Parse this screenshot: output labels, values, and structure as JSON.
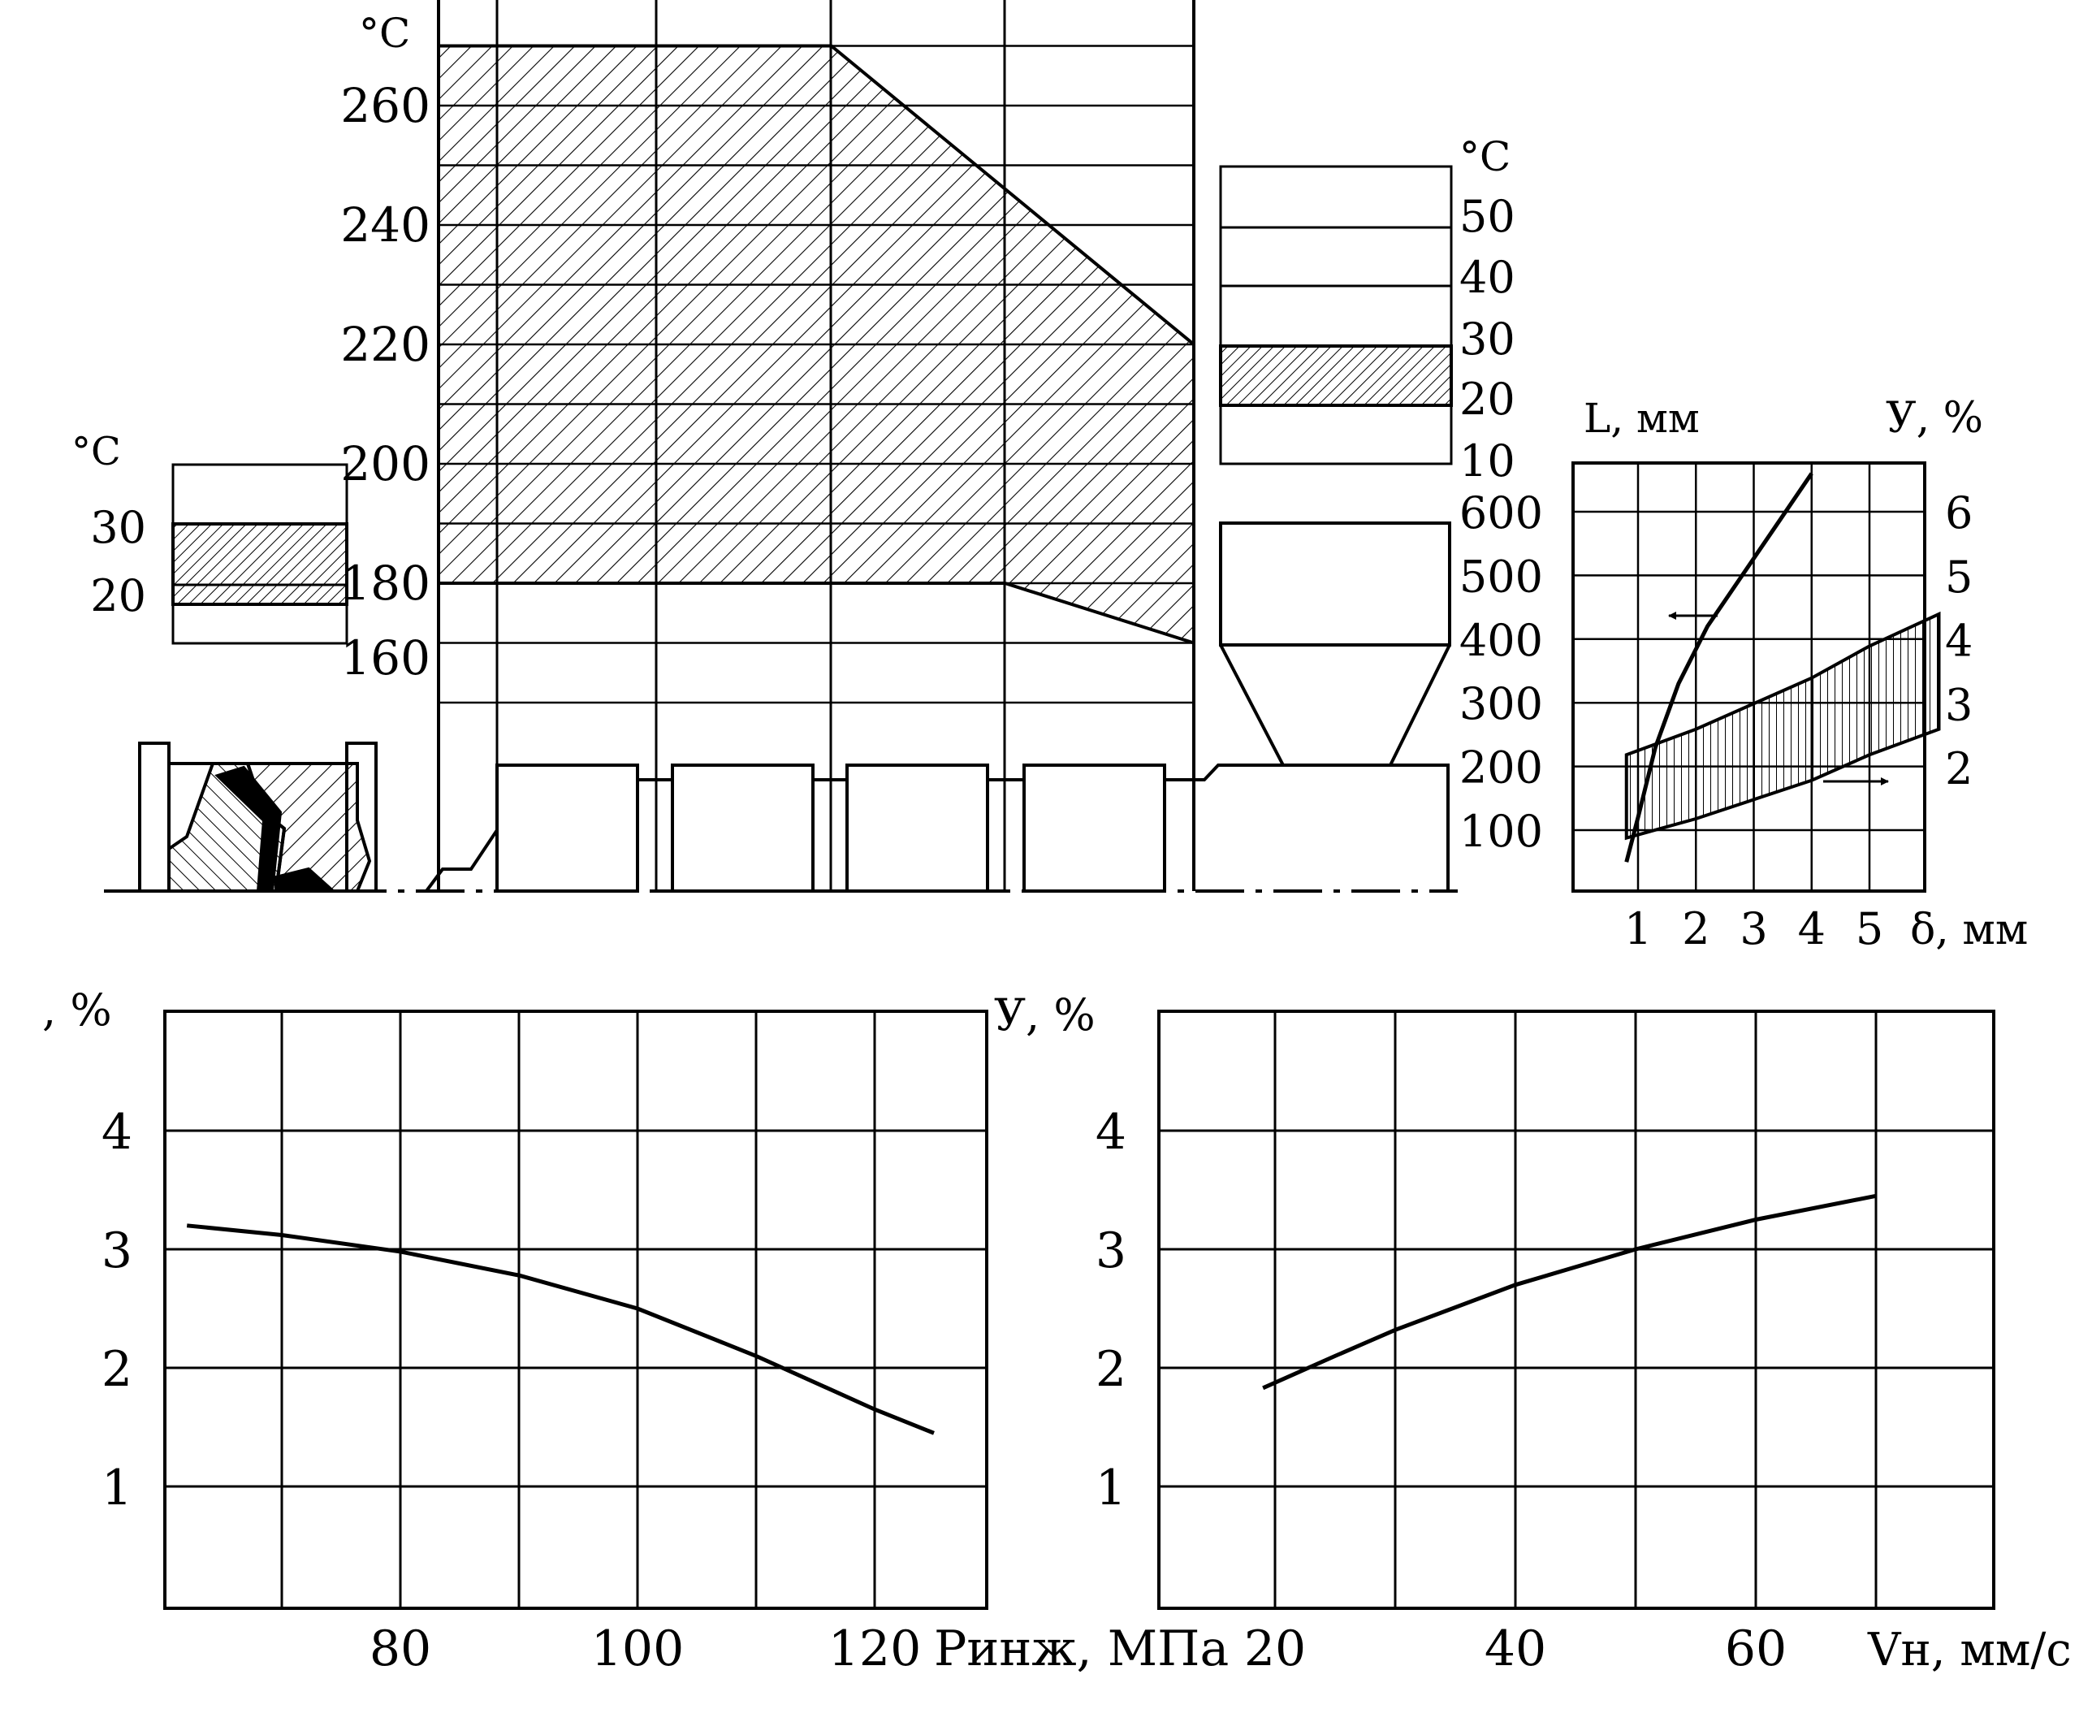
{
  "colors": {
    "ink": "#000000",
    "paper": "#ffffff"
  },
  "temp_chart": {
    "ylabel": "°C",
    "ticks": [
      {
        "v": 260,
        "label": "260"
      },
      {
        "v": 240,
        "label": "240"
      },
      {
        "v": 220,
        "label": "220"
      },
      {
        "v": 200,
        "label": "200"
      },
      {
        "v": 180,
        "label": "180"
      },
      {
        "v": 160,
        "label": "160"
      }
    ]
  },
  "mold_temp_bar": {
    "unit": "°C",
    "ticks": [
      {
        "v": 30,
        "label": "30"
      },
      {
        "v": 20,
        "label": "20"
      }
    ],
    "range": [
      20,
      30
    ]
  },
  "hopper_temp_bar": {
    "unit": "°C",
    "ticks": [
      {
        "v": 50,
        "label": "50"
      },
      {
        "v": 40,
        "label": "40"
      },
      {
        "v": 30,
        "label": "30"
      },
      {
        "v": 20,
        "label": "20"
      },
      {
        "v": 10,
        "label": "10"
      }
    ],
    "range": [
      20,
      30
    ]
  },
  "chart_data": [
    {
      "type": "area",
      "ylabel": "°C",
      "ylim": [
        150,
        270
      ],
      "grid": true,
      "upper_bound": [
        [
          0,
          270
        ],
        [
          0.52,
          270
        ],
        [
          1.0,
          220
        ]
      ],
      "lower_bound": [
        [
          0,
          180
        ],
        [
          0.75,
          180
        ],
        [
          1.0,
          170
        ]
      ],
      "ticks": [
        260,
        240,
        220,
        200,
        180,
        160
      ]
    },
    {
      "type": "line",
      "xlabel": "δ, мм",
      "ylabel_left": "L, мм",
      "ylabel_right": "У, %",
      "xticks": [
        {
          "v": 1,
          "label": "1"
        },
        {
          "v": 2,
          "label": "2"
        },
        {
          "v": 3,
          "label": "3"
        },
        {
          "v": 4,
          "label": "4"
        },
        {
          "v": 5,
          "label": "5"
        }
      ],
      "yticks_left": [
        {
          "v": 600,
          "label": "600"
        },
        {
          "v": 500,
          "label": "500"
        },
        {
          "v": 400,
          "label": "400"
        },
        {
          "v": 300,
          "label": "300"
        },
        {
          "v": 200,
          "label": "200"
        },
        {
          "v": 100,
          "label": "100"
        }
      ],
      "yticks_right": [
        {
          "v": 6,
          "label": "6"
        },
        {
          "v": 5,
          "label": "5"
        },
        {
          "v": 4,
          "label": "4"
        },
        {
          "v": 3,
          "label": "3"
        },
        {
          "v": 2,
          "label": "2"
        }
      ],
      "xlim": [
        0.2,
        6.2
      ],
      "ylim_left": [
        0,
        700
      ],
      "ylim_right": [
        0,
        7
      ],
      "series": [
        {
          "axis": "left",
          "points": [
            [
              0.8,
              50
            ],
            [
              1.0,
              120
            ],
            [
              1.3,
              230
            ],
            [
              1.7,
              330
            ],
            [
              2.2,
              420
            ],
            [
              2.8,
              500
            ],
            [
              3.4,
              580
            ],
            [
              4.0,
              660
            ]
          ]
        }
      ],
      "band": {
        "axis": "right",
        "upper": [
          [
            0.8,
            2.2
          ],
          [
            2,
            2.6
          ],
          [
            3,
            3.0
          ],
          [
            4,
            3.4
          ],
          [
            5,
            3.9
          ],
          [
            6.2,
            4.4
          ]
        ],
        "lower": [
          [
            0.8,
            0.9
          ],
          [
            2,
            1.2
          ],
          [
            3,
            1.5
          ],
          [
            4,
            1.8
          ],
          [
            5,
            2.2
          ],
          [
            6.2,
            2.6
          ]
        ]
      }
    },
    {
      "type": "line",
      "xlabel": "Pинж, МПа",
      "ylabel": ", %",
      "xticks": [
        {
          "v": 80,
          "label": "80"
        },
        {
          "v": 100,
          "label": "100"
        },
        {
          "v": 120,
          "label": "120"
        }
      ],
      "yticks": [
        {
          "v": 4,
          "label": "4"
        },
        {
          "v": 3,
          "label": "3"
        },
        {
          "v": 2,
          "label": "2"
        },
        {
          "v": 1,
          "label": "1"
        }
      ],
      "xlim": [
        60,
        130
      ],
      "ylim": [
        0,
        5
      ],
      "series": [
        {
          "x": [
            62,
            70,
            80,
            90,
            100,
            110,
            120,
            125
          ],
          "y": [
            3.2,
            3.12,
            2.98,
            2.78,
            2.5,
            2.1,
            1.65,
            1.45
          ]
        }
      ]
    },
    {
      "type": "line",
      "xlabel": "Vн, мм/с",
      "ylabel": "У, %",
      "xticks": [
        {
          "v": 20,
          "label": "20"
        },
        {
          "v": 40,
          "label": "40"
        },
        {
          "v": 60,
          "label": "60"
        }
      ],
      "yticks": [
        {
          "v": 4,
          "label": "4"
        },
        {
          "v": 3,
          "label": "3"
        },
        {
          "v": 2,
          "label": "2"
        },
        {
          "v": 1,
          "label": "1"
        }
      ],
      "xlim": [
        10,
        80
      ],
      "ylim": [
        0,
        5
      ],
      "series": [
        {
          "x": [
            19,
            25,
            30,
            40,
            50,
            60,
            70
          ],
          "y": [
            1.83,
            2.1,
            2.32,
            2.7,
            3.0,
            3.25,
            3.45
          ]
        }
      ]
    }
  ]
}
